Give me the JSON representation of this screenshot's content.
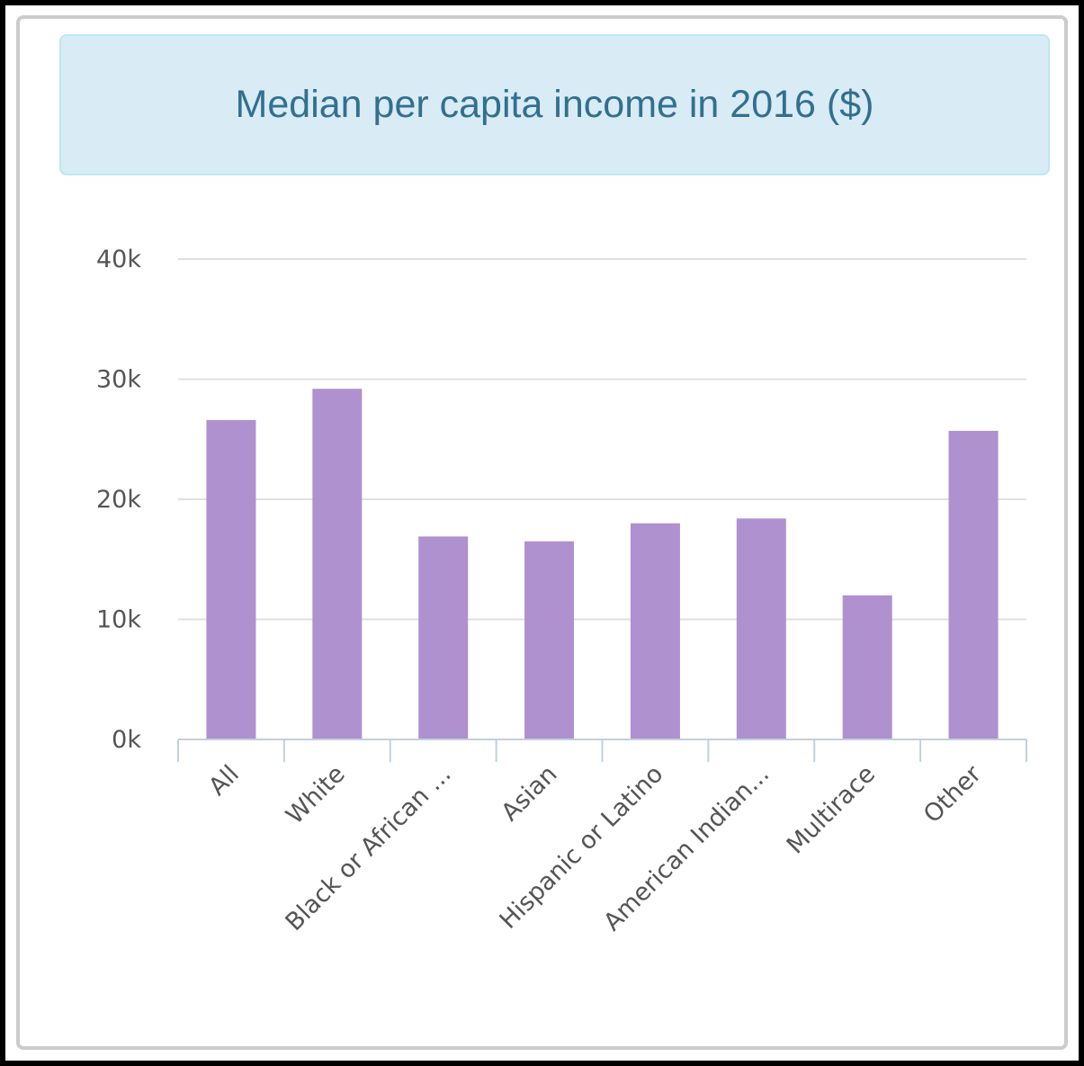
{
  "chart_data": {
    "type": "bar",
    "title": "Median per capita income in 2016 ($)",
    "categories": [
      "All",
      "White",
      "Black or African ...",
      "Asian",
      "Hispanic or Latino",
      "American Indian...",
      "Multirace",
      "Other"
    ],
    "values": [
      26600,
      29200,
      16900,
      16500,
      18000,
      18400,
      12000,
      25700
    ],
    "ylim": [
      0,
      40000
    ],
    "yticks": [
      0,
      10000,
      20000,
      30000,
      40000
    ],
    "ytick_labels": [
      "0k",
      "10k",
      "20k",
      "30k",
      "40k"
    ],
    "grid": true,
    "bar_color": "#af91cf",
    "grid_color": "#e0e0e0",
    "axis_color": "#c0d0e0"
  }
}
